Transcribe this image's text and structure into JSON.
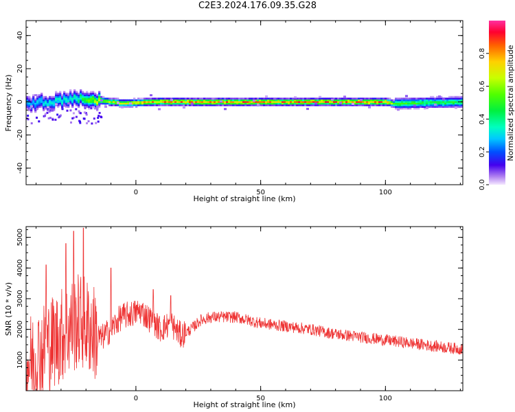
{
  "figure": {
    "title": "C2E3.2024.176.09.35.G28"
  },
  "chart_data": [
    {
      "type": "heatmap",
      "xlabel": "Height of straight line (km)",
      "ylabel": "Frequency (Hz)",
      "xlim": [
        -44,
        131
      ],
      "ylim": [
        -50,
        49
      ],
      "xticks": [
        0,
        50,
        100
      ],
      "yticks": [
        -40,
        -20,
        0,
        20,
        40
      ],
      "grid": false,
      "colorbar": {
        "label": "Normalized spectral amplitude",
        "range": [
          0.0,
          1.0
        ],
        "ticks": [
          0.0,
          0.2,
          0.4,
          0.6,
          0.8
        ],
        "colormap": "gist_ncar-like"
      },
      "ridge": {
        "description_free": true,
        "x": [
          -44,
          -35,
          -25,
          -15,
          -5,
          5,
          25,
          50,
          75,
          100,
          103,
          131
        ],
        "center_hz": [
          0,
          1,
          3,
          2,
          0,
          1,
          1,
          1,
          1,
          1,
          0,
          1
        ],
        "amplitude": [
          0.3,
          0.35,
          0.4,
          0.7,
          0.75,
          0.85,
          0.9,
          0.9,
          0.9,
          0.9,
          0.55,
          0.5
        ]
      }
    },
    {
      "type": "line",
      "xlabel": "Height of straight line (km)",
      "ylabel": "SNR (10 * v/v)",
      "xlim": [
        -44,
        131
      ],
      "ylim": [
        0,
        5350
      ],
      "xticks": [
        0,
        50,
        100
      ],
      "yticks": [
        1000,
        2000,
        3000,
        4000,
        5000
      ],
      "grid": false,
      "color": "#ee3333",
      "series": [
        {
          "x": [
            -44,
            -40,
            -35,
            -30,
            -26,
            -22,
            -18,
            -14,
            -10,
            -6,
            -2,
            2,
            6,
            10,
            14,
            18,
            22,
            26,
            30,
            40,
            50,
            60,
            70,
            80,
            90,
            100,
            110,
            120,
            131
          ],
          "values": [
            900,
            1100,
            1500,
            1800,
            2100,
            2300,
            2000,
            1700,
            2000,
            2400,
            2500,
            2600,
            2300,
            2000,
            2200,
            1800,
            2000,
            2300,
            2400,
            2400,
            2200,
            2100,
            2000,
            1850,
            1750,
            1650,
            1550,
            1450,
            1350
          ]
        }
      ],
      "peaks": [
        {
          "x": -36,
          "y": 4100
        },
        {
          "x": -28,
          "y": 4800
        },
        {
          "x": -25,
          "y": 5200
        },
        {
          "x": -21,
          "y": 5300
        },
        {
          "x": -10,
          "y": 4000
        },
        {
          "x": 7,
          "y": 3300
        },
        {
          "x": 14,
          "y": 3100
        }
      ]
    }
  ]
}
